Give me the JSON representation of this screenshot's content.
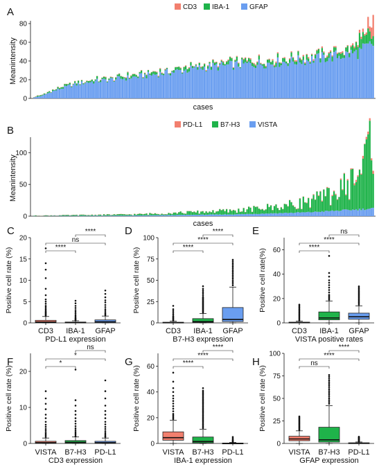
{
  "colors": {
    "red": "#f27f6e",
    "green": "#1fb34a",
    "blue": "#6a9ef0",
    "whisker": "#111111"
  },
  "chart_data": [
    {
      "panel": "A",
      "type": "bar",
      "stacked": true,
      "xlabel": "cases",
      "ylabel": "Meanintensity",
      "legend_position": "top-center",
      "ylim": [
        0,
        80
      ],
      "yticks": [
        0,
        20,
        40,
        60,
        80
      ],
      "series_names": [
        "CD3",
        "IBA-1",
        "GFAP"
      ],
      "n_cases": 200,
      "profile": {
        "blue": [
          [
            0,
            1
          ],
          [
            5,
            3
          ],
          [
            10,
            7
          ],
          [
            20,
            13
          ],
          [
            30,
            17
          ],
          [
            40,
            19
          ],
          [
            60,
            23
          ],
          [
            80,
            28
          ],
          [
            100,
            33
          ],
          [
            120,
            36
          ],
          [
            140,
            38
          ],
          [
            160,
            41
          ],
          [
            180,
            46
          ],
          [
            190,
            49
          ],
          [
            196,
            55
          ],
          [
            199,
            58
          ]
        ],
        "green": [
          [
            0,
            0.5
          ],
          [
            30,
            1.5
          ],
          [
            100,
            2
          ],
          [
            180,
            3
          ],
          [
            195,
            10
          ],
          [
            199,
            14
          ]
        ],
        "red": [
          [
            0,
            0.2
          ],
          [
            100,
            0.5
          ],
          [
            190,
            1
          ],
          [
            197,
            10
          ],
          [
            199,
            12
          ]
        ]
      }
    },
    {
      "panel": "B",
      "type": "bar",
      "stacked": true,
      "xlabel": "cases",
      "ylabel": "Meanintensity",
      "legend_position": "top-center",
      "ylim": [
        0,
        120
      ],
      "yticks": [
        0,
        50,
        100
      ],
      "series_names": [
        "PD-L1",
        "B7-H3",
        "VISTA"
      ],
      "n_cases": 200,
      "profile": {
        "blue": [
          [
            0,
            0.3
          ],
          [
            60,
            1
          ],
          [
            120,
            3
          ],
          [
            160,
            6
          ],
          [
            180,
            9
          ],
          [
            199,
            12
          ]
        ],
        "green": [
          [
            0,
            0.5
          ],
          [
            60,
            1.5
          ],
          [
            120,
            5
          ],
          [
            150,
            10
          ],
          [
            170,
            18
          ],
          [
            180,
            26
          ],
          [
            190,
            45
          ],
          [
            196,
            75
          ],
          [
            199,
            110
          ]
        ],
        "red": [
          [
            0,
            0
          ],
          [
            150,
            0.3
          ],
          [
            180,
            1
          ],
          [
            199,
            3
          ]
        ]
      }
    },
    {
      "panel": "C",
      "type": "box",
      "xlabel": "PD-L1 expression",
      "ylabel": "Positive cell rate (%)",
      "ylim": [
        0,
        20
      ],
      "yticks": [
        0,
        5,
        10,
        15,
        20
      ],
      "categories": [
        "CD3",
        "IBA-1",
        "GFAP"
      ],
      "box_colors": [
        "red",
        "green",
        "blue"
      ],
      "boxes": [
        {
          "q1": 0.05,
          "median": 0.2,
          "q3": 0.6,
          "lower": 0,
          "upper": 1.5,
          "outliers": [
            1.7,
            1.9,
            2.1,
            2.3,
            2.5,
            2.7,
            3.0,
            3.3,
            3.7,
            4.0,
            4.5,
            5.0,
            5.5,
            6.5,
            8.0,
            10.5,
            12.5,
            14.0,
            17.5
          ]
        },
        {
          "q1": 0.0,
          "median": 0.05,
          "q3": 0.2,
          "lower": 0,
          "upper": 0.5,
          "outliers": [
            0.6,
            0.8,
            1.0,
            1.2,
            1.5,
            1.8,
            2.2,
            2.6,
            3.0,
            3.5,
            4.0,
            4.6,
            5.2
          ]
        },
        {
          "q1": 0.05,
          "median": 0.25,
          "q3": 0.7,
          "lower": 0,
          "upper": 1.6,
          "outliers": [
            1.8,
            2.1,
            2.4,
            2.8,
            3.2,
            3.7,
            4.2,
            4.8,
            5.3,
            6.0,
            6.8,
            7.6
          ]
        }
      ],
      "comparisons": [
        {
          "pair": [
            0,
            1
          ],
          "label": "****"
        },
        {
          "pair": [
            0,
            2
          ],
          "label": "ns"
        },
        {
          "pair": [
            1,
            2
          ],
          "label": "****"
        }
      ]
    },
    {
      "panel": "D",
      "type": "box",
      "xlabel": "B7-H3 expression",
      "ylabel": "Positive cell rate (%)",
      "ylim": [
        0,
        100
      ],
      "yticks": [
        0,
        25,
        50,
        75,
        100
      ],
      "categories": [
        "CD3",
        "IBA-1",
        "GFAP"
      ],
      "box_colors": [
        "red",
        "green",
        "blue"
      ],
      "boxes": [
        {
          "q1": 0,
          "median": 0.2,
          "q3": 0.8,
          "lower": 0,
          "upper": 2,
          "outliers": [
            3,
            4,
            5,
            6,
            7,
            8,
            10,
            12,
            14,
            16,
            20
          ]
        },
        {
          "q1": 0.5,
          "median": 1.5,
          "q3": 5,
          "lower": 0,
          "upper": 11,
          "outliers": [
            12,
            13,
            14,
            15,
            16,
            17,
            18,
            19,
            20,
            21,
            22,
            23,
            24,
            25,
            26,
            27,
            28,
            29,
            30,
            32,
            34,
            36,
            38,
            40,
            43
          ]
        },
        {
          "q1": 1.5,
          "median": 4,
          "q3": 18,
          "lower": 0,
          "upper": 42,
          "outliers": [
            44,
            46,
            48,
            50,
            52,
            54,
            56,
            58,
            60,
            62,
            64,
            66,
            68,
            70,
            72,
            74
          ]
        }
      ],
      "comparisons": [
        {
          "pair": [
            0,
            1
          ],
          "label": "****"
        },
        {
          "pair": [
            0,
            2
          ],
          "label": "****"
        },
        {
          "pair": [
            1,
            2
          ],
          "label": "****"
        }
      ]
    },
    {
      "panel": "E",
      "type": "box",
      "xlabel": "VISTA positive rates",
      "ylabel": "Positive cell rate(%)",
      "ylim": [
        0,
        70
      ],
      "yticks": [
        0,
        20,
        40,
        60
      ],
      "categories": [
        "CD3",
        "IBA-1",
        "GFAP"
      ],
      "box_colors": [
        "red",
        "green",
        "blue"
      ],
      "boxes": [
        {
          "q1": 0,
          "median": 0.2,
          "q3": 0.6,
          "lower": 0,
          "upper": 1.5,
          "outliers": [
            2,
            3,
            4,
            5,
            6,
            7,
            8,
            9,
            10,
            11,
            12,
            13,
            14,
            15
          ]
        },
        {
          "q1": 2.5,
          "median": 4,
          "q3": 9,
          "lower": 0,
          "upper": 18,
          "outliers": [
            19,
            20,
            21,
            22,
            23,
            25,
            27,
            29,
            31,
            33,
            35,
            38,
            41,
            55
          ]
        },
        {
          "q1": 3,
          "median": 5,
          "q3": 8,
          "lower": 0,
          "upper": 14,
          "outliers": [
            15,
            16,
            17,
            18,
            19,
            20,
            21,
            22,
            23,
            24,
            25,
            26,
            27,
            28,
            29,
            30
          ]
        }
      ],
      "comparisons": [
        {
          "pair": [
            0,
            1
          ],
          "label": "****"
        },
        {
          "pair": [
            0,
            2
          ],
          "label": "****"
        },
        {
          "pair": [
            1,
            2
          ],
          "label": "ns"
        }
      ]
    },
    {
      "panel": "F",
      "type": "box",
      "xlabel": "CD3 expression",
      "ylabel": "Positive cell rate (%)",
      "ylim": [
        0,
        25
      ],
      "yticks": [
        0,
        10,
        20
      ],
      "categories": [
        "VISTA",
        "B7-H3",
        "PD-L1"
      ],
      "box_colors": [
        "red",
        "green",
        "blue"
      ],
      "boxes": [
        {
          "q1": 0.05,
          "median": 0.2,
          "q3": 0.6,
          "lower": 0,
          "upper": 1.5,
          "outliers": [
            1.8,
            2.2,
            2.6,
            3.0,
            3.5,
            4.0,
            4.6,
            5.2,
            6.0,
            7.0,
            8.0,
            9.5,
            11.0,
            12.5,
            14.5
          ]
        },
        {
          "q1": 0.05,
          "median": 0.3,
          "q3": 0.8,
          "lower": 0,
          "upper": 1.8,
          "outliers": [
            2.0,
            2.4,
            2.8,
            3.2,
            3.7,
            4.2,
            4.8,
            5.5,
            6.2,
            7.0,
            8.0,
            9.0,
            10.5,
            12.0,
            20.5
          ]
        },
        {
          "q1": 0.05,
          "median": 0.2,
          "q3": 0.6,
          "lower": 0,
          "upper": 1.5,
          "outliers": [
            1.8,
            2.1,
            2.5,
            2.9,
            3.4,
            4.0,
            4.6,
            5.3,
            6.0,
            7.0,
            8.0,
            9.0,
            10.5,
            12.5,
            14.5,
            17.5
          ]
        }
      ],
      "comparisons": [
        {
          "pair": [
            0,
            1
          ],
          "label": "*"
        },
        {
          "pair": [
            0,
            2
          ],
          "label": "*"
        },
        {
          "pair": [
            1,
            2
          ],
          "label": "ns"
        }
      ]
    },
    {
      "panel": "G",
      "type": "box",
      "xlabel": "IBA-1 expression",
      "ylabel": "Positive cell rate (%)",
      "ylim": [
        0,
        70
      ],
      "yticks": [
        0,
        20,
        40,
        60
      ],
      "categories": [
        "VISTA",
        "B7-H3",
        "PD-L1"
      ],
      "box_colors": [
        "red",
        "green",
        "blue"
      ],
      "boxes": [
        {
          "q1": 2.5,
          "median": 4.5,
          "q3": 9,
          "lower": 0,
          "upper": 18,
          "outliers": [
            19,
            20,
            21,
            22,
            23,
            25,
            27,
            29,
            31,
            33,
            35,
            37,
            40,
            43,
            48,
            55
          ]
        },
        {
          "q1": 0.5,
          "median": 1.5,
          "q3": 5,
          "lower": 0,
          "upper": 11,
          "outliers": [
            12,
            13,
            14,
            15,
            16,
            17,
            18,
            19,
            20,
            21,
            22,
            23,
            24,
            25,
            26,
            27,
            28,
            29,
            30,
            31,
            32,
            33,
            34,
            35,
            36,
            37,
            38,
            39,
            40,
            41,
            43
          ]
        },
        {
          "q1": 0,
          "median": 0.05,
          "q3": 0.3,
          "lower": 0,
          "upper": 0.8,
          "outliers": [
            1.0,
            1.5,
            2.0,
            2.5,
            3.0,
            4.0,
            5.0
          ]
        }
      ],
      "comparisons": [
        {
          "pair": [
            0,
            1
          ],
          "label": "****"
        },
        {
          "pair": [
            0,
            2
          ],
          "label": "****"
        },
        {
          "pair": [
            1,
            2
          ],
          "label": "****"
        }
      ]
    },
    {
      "panel": "H",
      "type": "box",
      "xlabel": "GFAP expression",
      "ylabel": "Positive cell rate (%)",
      "ylim": [
        0,
        100
      ],
      "yticks": [
        0,
        25,
        50,
        75,
        100
      ],
      "categories": [
        "VISTA",
        "B7-H3",
        "PD-L1"
      ],
      "box_colors": [
        "red",
        "green",
        "blue"
      ],
      "boxes": [
        {
          "q1": 3,
          "median": 5,
          "q3": 8,
          "lower": 0,
          "upper": 14,
          "outliers": [
            15,
            16,
            17,
            18,
            19,
            20,
            21,
            22,
            23,
            24,
            25,
            26,
            27,
            28,
            29,
            30
          ]
        },
        {
          "q1": 1.5,
          "median": 4,
          "q3": 18,
          "lower": 0,
          "upper": 42,
          "outliers": [
            44,
            46,
            48,
            50,
            52,
            54,
            56,
            58,
            60,
            62,
            64,
            66,
            68,
            70,
            72,
            74,
            76
          ]
        },
        {
          "q1": 0.05,
          "median": 0.25,
          "q3": 0.7,
          "lower": 0,
          "upper": 1.6,
          "outliers": [
            2,
            2.5,
            3,
            3.5,
            4,
            4.5,
            5,
            5.5,
            6,
            6.5,
            7,
            7.5
          ]
        }
      ],
      "comparisons": [
        {
          "pair": [
            0,
            1
          ],
          "label": "ns"
        },
        {
          "pair": [
            0,
            2
          ],
          "label": "****"
        },
        {
          "pair": [
            1,
            2
          ],
          "label": "****"
        }
      ]
    }
  ]
}
